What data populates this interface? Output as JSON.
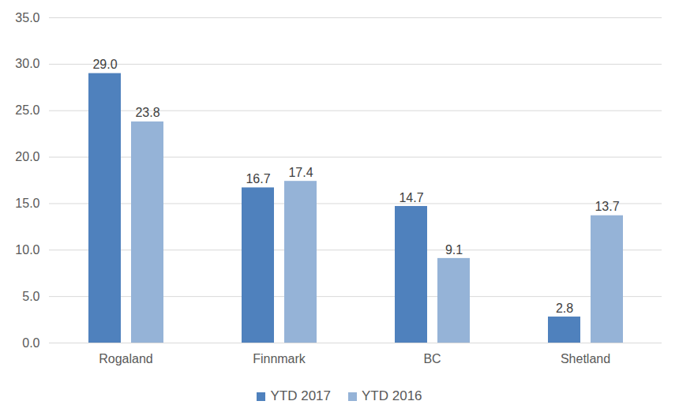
{
  "chart_data": {
    "type": "bar",
    "categories": [
      "Rogaland",
      "Finnmark",
      "BC",
      "Shetland"
    ],
    "series": [
      {
        "name": "YTD 2017",
        "color": "#4f81bd",
        "values": [
          29.0,
          16.7,
          14.7,
          2.8
        ],
        "value_labels": [
          "29.0",
          "16.7",
          "14.7",
          "2.8"
        ]
      },
      {
        "name": "YTD 2016",
        "color": "#95b3d7",
        "values": [
          23.8,
          17.4,
          9.1,
          13.7
        ],
        "value_labels": [
          "23.8",
          "17.4",
          "9.1",
          "13.7"
        ]
      }
    ],
    "ylim": [
      0,
      35
    ],
    "yticks": [
      {
        "value": 0,
        "label": "0.0"
      },
      {
        "value": 5,
        "label": "5.0"
      },
      {
        "value": 10,
        "label": "10.0"
      },
      {
        "value": 15,
        "label": "15.0"
      },
      {
        "value": 20,
        "label": "20.0"
      },
      {
        "value": 25,
        "label": "25.0"
      },
      {
        "value": 30,
        "label": "30.0"
      },
      {
        "value": 35,
        "label": "35.0"
      }
    ],
    "grid": true,
    "legend": "bottom",
    "data_labels": true
  }
}
